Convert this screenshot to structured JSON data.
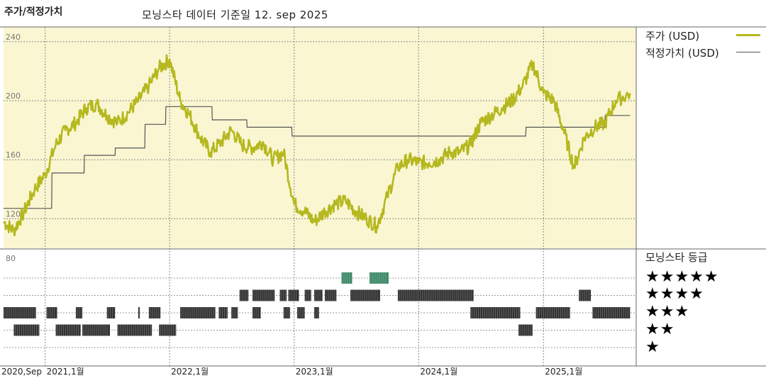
{
  "title": "주가/적정가치",
  "subtitle": "모닝스타 데이터 기준일 12. sep 2025",
  "colors": {
    "price": "#b5b81e",
    "fair": "#555555",
    "panel_bg": "#faf6d2",
    "rating_bar": "#333333",
    "rating_bar_top": "#3f8a6a"
  },
  "legend": {
    "price": "주가 (USD)",
    "fair": "적정가치 (USD)",
    "rating_title": "모닝스타 등급",
    "stars": [
      "★★★★★",
      "★★★★",
      "★★★",
      "★★",
      "★"
    ]
  },
  "chart_data": [
    {
      "type": "line",
      "ylim": [
        100,
        250
      ],
      "y_ticks": [
        120,
        160,
        200,
        240
      ],
      "x_tick_labels": [
        "2020,Sep",
        "2021,1월",
        "2022,1월",
        "2023,1월",
        "2024,1월",
        "2025,1월"
      ],
      "x_ticks": [
        "2020-09-01",
        "2021-01-01",
        "2022-01-01",
        "2023-01-01",
        "2024-01-01",
        "2025-01-01"
      ],
      "xlim": [
        "2020-09-01",
        "2025-09-30"
      ],
      "grid": true,
      "series": [
        {
          "name": "주가 (USD)",
          "x": [
            "2020-09-01",
            "2020-10-01",
            "2020-11-01",
            "2020-12-01",
            "2021-01-01",
            "2021-02-01",
            "2021-03-01",
            "2021-04-01",
            "2021-05-01",
            "2021-06-01",
            "2021-07-01",
            "2021-08-01",
            "2021-09-01",
            "2021-10-01",
            "2021-11-01",
            "2021-12-01",
            "2022-01-01",
            "2022-02-01",
            "2022-03-01",
            "2022-04-01",
            "2022-05-01",
            "2022-06-01",
            "2022-07-01",
            "2022-08-01",
            "2022-09-01",
            "2022-10-01",
            "2022-11-01",
            "2022-12-01",
            "2023-01-01",
            "2023-02-01",
            "2023-03-01",
            "2023-04-01",
            "2023-05-01",
            "2023-06-01",
            "2023-07-01",
            "2023-08-01",
            "2023-09-01",
            "2023-10-01",
            "2023-11-01",
            "2023-12-01",
            "2024-01-01",
            "2024-02-01",
            "2024-03-01",
            "2024-04-01",
            "2024-05-01",
            "2024-06-01",
            "2024-07-01",
            "2024-08-01",
            "2024-09-01",
            "2024-10-01",
            "2024-11-01",
            "2024-12-01",
            "2025-01-01",
            "2025-02-01",
            "2025-03-01",
            "2025-04-01",
            "2025-05-01",
            "2025-06-01",
            "2025-07-01",
            "2025-08-01",
            "2025-09-12"
          ],
          "values": [
            118,
            112,
            125,
            140,
            150,
            170,
            180,
            185,
            195,
            198,
            190,
            185,
            192,
            200,
            210,
            222,
            228,
            200,
            190,
            175,
            165,
            172,
            180,
            170,
            168,
            172,
            160,
            165,
            130,
            125,
            118,
            125,
            130,
            132,
            125,
            120,
            115,
            135,
            155,
            160,
            158,
            158,
            160,
            165,
            165,
            170,
            185,
            190,
            195,
            200,
            210,
            225,
            205,
            200,
            180,
            155,
            175,
            182,
            185,
            200,
            205
          ]
        },
        {
          "name": "적정가치 (USD)",
          "x": [
            "2020-09-01",
            "2020-12-20",
            "2020-12-21",
            "2021-01-20",
            "2021-01-21",
            "2021-04-25",
            "2021-04-26",
            "2021-07-25",
            "2021-07-26",
            "2021-10-20",
            "2021-10-21",
            "2021-12-20",
            "2021-12-21",
            "2022-05-05",
            "2022-05-06",
            "2022-08-15",
            "2022-08-16",
            "2022-12-25",
            "2022-12-26",
            "2024-04-05",
            "2024-04-06",
            "2024-11-10",
            "2024-11-11",
            "2025-06-15",
            "2025-06-16",
            "2025-06-30",
            "2025-07-01",
            "2025-09-12"
          ],
          "values": [
            127,
            127,
            127,
            127,
            151,
            151,
            163,
            163,
            168,
            168,
            184,
            184,
            196,
            196,
            187,
            187,
            182,
            182,
            176,
            176,
            176,
            176,
            182,
            182,
            182,
            182,
            190,
            190
          ]
        }
      ]
    },
    {
      "type": "heatmap",
      "ylabel": "",
      "y_ticks": [
        80
      ],
      "levels": [
        5,
        4,
        3,
        2,
        1
      ],
      "segments": [
        {
          "level": 5,
          "start": "2023-05-20",
          "end": "2023-06-20"
        },
        {
          "level": 5,
          "start": "2023-08-10",
          "end": "2023-10-05"
        },
        {
          "level": 4,
          "start": "2022-07-25",
          "end": "2022-08-20"
        },
        {
          "level": 4,
          "start": "2022-09-01",
          "end": "2022-11-05"
        },
        {
          "level": 4,
          "start": "2022-11-20",
          "end": "2022-12-10"
        },
        {
          "level": 4,
          "start": "2022-12-15",
          "end": "2023-01-15"
        },
        {
          "level": 4,
          "start": "2023-02-01",
          "end": "2023-02-20"
        },
        {
          "level": 4,
          "start": "2023-03-01",
          "end": "2023-03-25"
        },
        {
          "level": 4,
          "start": "2023-04-01",
          "end": "2023-05-05"
        },
        {
          "level": 4,
          "start": "2023-06-15",
          "end": "2023-09-10"
        },
        {
          "level": 4,
          "start": "2023-11-01",
          "end": "2024-06-10"
        },
        {
          "level": 4,
          "start": "2025-04-15",
          "end": "2025-05-20"
        },
        {
          "level": 3,
          "start": "2020-09-01",
          "end": "2020-12-05"
        },
        {
          "level": 3,
          "start": "2021-01-05",
          "end": "2021-02-05"
        },
        {
          "level": 3,
          "start": "2021-04-01",
          "end": "2021-04-20"
        },
        {
          "level": 3,
          "start": "2021-07-01",
          "end": "2021-07-25"
        },
        {
          "level": 3,
          "start": "2021-10-01",
          "end": "2021-10-05"
        },
        {
          "level": 3,
          "start": "2021-11-01",
          "end": "2021-12-05"
        },
        {
          "level": 3,
          "start": "2022-02-01",
          "end": "2022-05-15"
        },
        {
          "level": 3,
          "start": "2022-05-25",
          "end": "2022-06-20"
        },
        {
          "level": 3,
          "start": "2022-07-01",
          "end": "2022-07-20"
        },
        {
          "level": 3,
          "start": "2022-09-01",
          "end": "2022-09-25"
        },
        {
          "level": 3,
          "start": "2022-12-01",
          "end": "2022-12-20"
        },
        {
          "level": 3,
          "start": "2023-01-10",
          "end": "2023-02-01"
        },
        {
          "level": 3,
          "start": "2023-03-01",
          "end": "2023-03-15"
        },
        {
          "level": 3,
          "start": "2024-06-01",
          "end": "2024-10-25"
        },
        {
          "level": 3,
          "start": "2024-12-10",
          "end": "2025-03-20"
        },
        {
          "level": 3,
          "start": "2025-05-25",
          "end": "2025-09-12"
        },
        {
          "level": 2,
          "start": "2020-10-01",
          "end": "2020-12-15"
        },
        {
          "level": 2,
          "start": "2021-02-01",
          "end": "2021-04-15"
        },
        {
          "level": 2,
          "start": "2021-04-20",
          "end": "2021-07-10"
        },
        {
          "level": 2,
          "start": "2021-08-01",
          "end": "2021-11-10"
        },
        {
          "level": 2,
          "start": "2021-12-01",
          "end": "2022-01-20"
        },
        {
          "level": 2,
          "start": "2024-10-20",
          "end": "2024-11-30"
        }
      ]
    }
  ]
}
